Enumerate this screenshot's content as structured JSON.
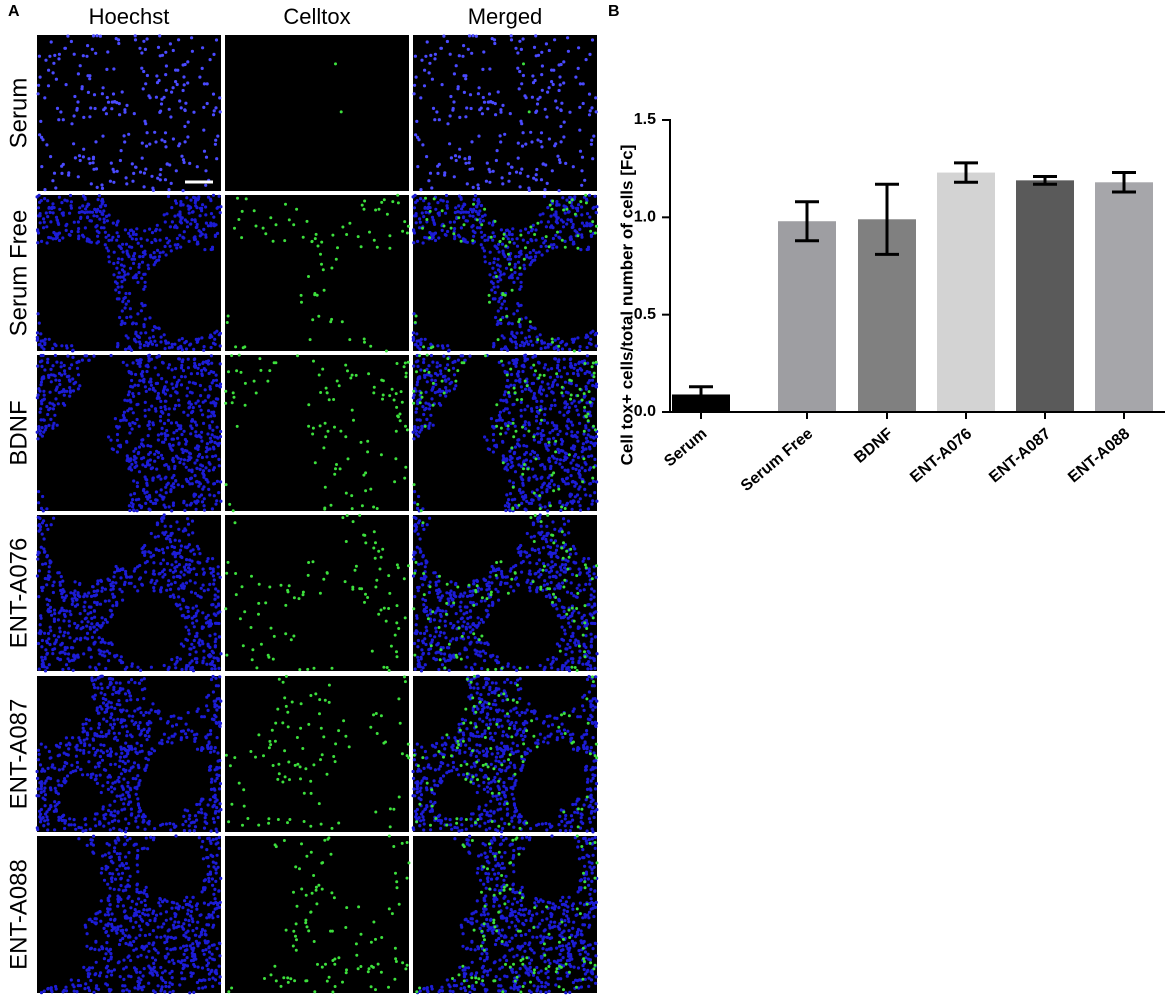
{
  "panel_a": {
    "label": "A",
    "columns": [
      "Hoechst",
      "Celltox",
      "Merged"
    ],
    "rows": [
      "Serum",
      "Serum Free",
      "BDNF",
      "ENT-A076",
      "ENT-A087",
      "ENT-A088"
    ]
  },
  "chart_data": {
    "type": "bar",
    "panel_label": "B",
    "y_label": "Cell tox+ cells/total number of cells [Fc]",
    "categories": [
      "Serum",
      "Serum Free",
      "BDNF",
      "ENT-A076",
      "ENT-A087",
      "ENT-A088"
    ],
    "values": [
      0.09,
      0.98,
      0.99,
      1.23,
      1.19,
      1.18
    ],
    "errors": [
      0.04,
      0.1,
      0.18,
      0.05,
      0.02,
      0.05
    ],
    "colors": [
      "#000000",
      "#9e9ea2",
      "#808080",
      "#d3d3d3",
      "#5a5a5a",
      "#a6a6aa"
    ],
    "ylim": [
      0,
      1.5
    ],
    "yticks": [
      {
        "value": 0,
        "label": "0.0"
      },
      0.5,
      {
        "value": 1,
        "label": "1.0"
      },
      1.5
    ]
  }
}
